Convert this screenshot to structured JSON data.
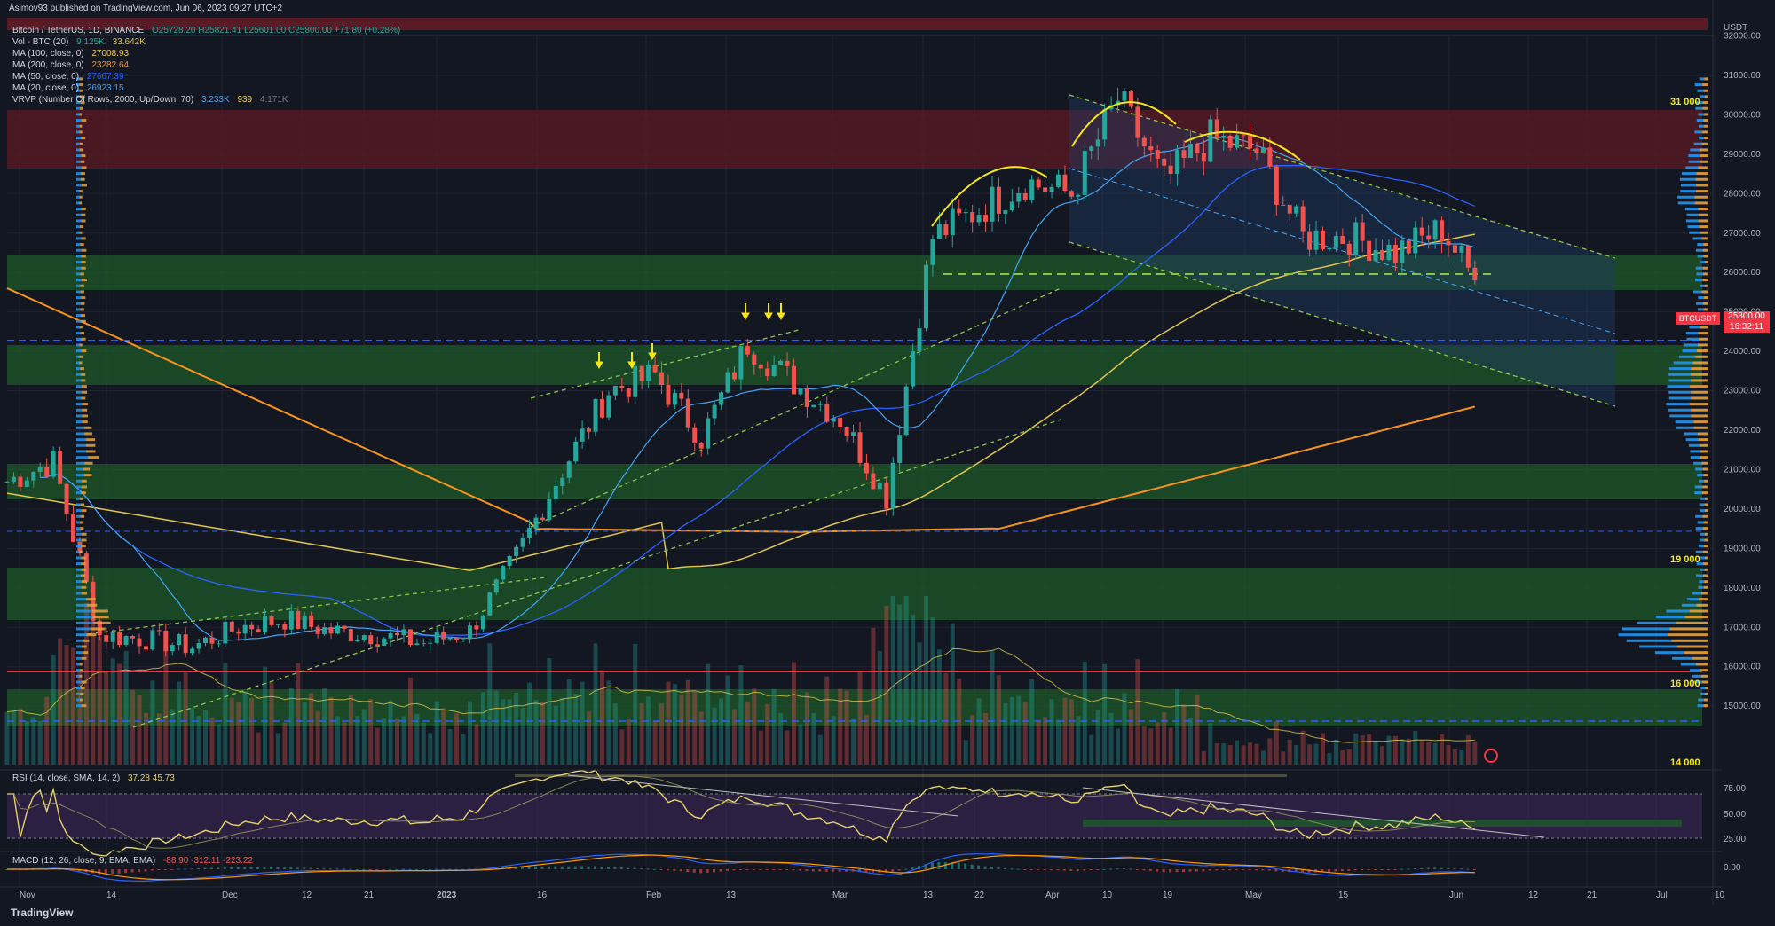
{
  "publisher_line": "Asimov93 published on TradingView.com, Jun 06, 2023 09:27 UTC+2",
  "brand": "TradingView",
  "legend": {
    "symbol": "Bitcoin / TetherUS, 1D, BINANCE",
    "ohlc": "O25728.20  H25821.41  L25601.00  C25800.00  +71.80 (+0.28%)",
    "lines": [
      {
        "label": "Vol - BTC (20)",
        "value": "9.125K",
        "value2": "33.642K"
      },
      {
        "label": "MA (100, close, 0)",
        "value": "27008.93",
        "color": "#f2d04b"
      },
      {
        "label": "MA (200, close, 0)",
        "value": "23282.64",
        "color": "#f7931a"
      },
      {
        "label": "MA (50, close, 0)",
        "value": "27667.39",
        "color": "#2962ff"
      },
      {
        "label": "MA (20, close, 0)",
        "value": "26923.15",
        "color": "#42a5f5"
      },
      {
        "label": "VRVP (Number Of Rows, 2000, Up/Down, 70)",
        "value": "3.233K",
        "value2": "939",
        "value3": "4.171K"
      }
    ]
  },
  "rsi_label": "RSI (14, close, SMA, 14, 2)",
  "rsi_values": "37.28  45.73",
  "macd_label": "MACD (12, 26, close, 9, EMA, EMA)",
  "macd_values": "-88.90  -312.11  -223.22",
  "price_axis": {
    "currency": "USDT",
    "ticks": [
      "32000.00",
      "31000.00",
      "30000.00",
      "29000.00",
      "28000.00",
      "27000.00",
      "26000.00",
      "25000.00",
      "24000.00",
      "23000.00",
      "22000.00",
      "21000.00",
      "20000.00",
      "19000.00",
      "18000.00",
      "17000.00",
      "16000.00",
      "15000.00"
    ],
    "last_price": "25800.00",
    "countdown": "16:32:11",
    "symbol_tag": "BTCUSDT"
  },
  "rsi_axis": [
    "75.00",
    "50.00",
    "25.00"
  ],
  "macd_axis": [
    "0.00"
  ],
  "time_axis": [
    "Nov",
    "14",
    "Dec",
    "12",
    "21",
    "2023",
    "16",
    "Feb",
    "13",
    "Mar",
    "13",
    "22",
    "Apr",
    "10",
    "19",
    "May",
    "15",
    "Jun",
    "12",
    "21",
    "Jul",
    "10"
  ],
  "level_labels": [
    "31 000",
    "19 000",
    "16 000",
    "14 000"
  ],
  "colors": {
    "up": "#26a69a",
    "down": "#ef5350",
    "zone_green": "#1b5e20",
    "zone_red": "#5c1a24",
    "ma20": "#42a5f5",
    "ma50": "#2962ff",
    "ma100": "#f2d04b",
    "ma200": "#f7931a",
    "channel": "#8bc34a",
    "rsi": "#e6d36a",
    "macd": "#2962ff",
    "signal": "#ff9800"
  },
  "chart_data": {
    "type": "candlestick",
    "title": "Bitcoin / TetherUS, 1D, BINANCE",
    "y_range": [
      14300,
      32800
    ],
    "x_range": [
      "2022-10-27",
      "2023-07-12"
    ],
    "closes_weekly": [
      {
        "date": "2022-10-27",
        "close": 20700
      },
      {
        "date": "2022-11-03",
        "close": 21200
      },
      {
        "date": "2022-11-10",
        "close": 16800
      },
      {
        "date": "2022-11-17",
        "close": 16700
      },
      {
        "date": "2022-11-24",
        "close": 16500
      },
      {
        "date": "2022-12-01",
        "close": 17000
      },
      {
        "date": "2022-12-08",
        "close": 17200
      },
      {
        "date": "2022-12-15",
        "close": 16900
      },
      {
        "date": "2022-12-22",
        "close": 16800
      },
      {
        "date": "2022-12-29",
        "close": 16600
      },
      {
        "date": "2023-01-05",
        "close": 16900
      },
      {
        "date": "2023-01-12",
        "close": 18800
      },
      {
        "date": "2023-01-19",
        "close": 21000
      },
      {
        "date": "2023-01-26",
        "close": 23000
      },
      {
        "date": "2023-02-02",
        "close": 23400
      },
      {
        "date": "2023-02-09",
        "close": 21800
      },
      {
        "date": "2023-02-16",
        "close": 24200
      },
      {
        "date": "2023-02-23",
        "close": 23200
      },
      {
        "date": "2023-03-02",
        "close": 22300
      },
      {
        "date": "2023-03-09",
        "close": 20300
      },
      {
        "date": "2023-03-16",
        "close": 26900
      },
      {
        "date": "2023-03-23",
        "close": 27600
      },
      {
        "date": "2023-03-30",
        "close": 28300
      },
      {
        "date": "2023-04-06",
        "close": 28000
      },
      {
        "date": "2023-04-13",
        "close": 30400
      },
      {
        "date": "2023-04-20",
        "close": 28300
      },
      {
        "date": "2023-04-27",
        "close": 29400
      },
      {
        "date": "2023-05-04",
        "close": 29100
      },
      {
        "date": "2023-05-11",
        "close": 26900
      },
      {
        "date": "2023-05-18",
        "close": 26900
      },
      {
        "date": "2023-05-25",
        "close": 26500
      },
      {
        "date": "2023-06-01",
        "close": 27100
      },
      {
        "date": "2023-06-06",
        "close": 25800
      }
    ]
  }
}
